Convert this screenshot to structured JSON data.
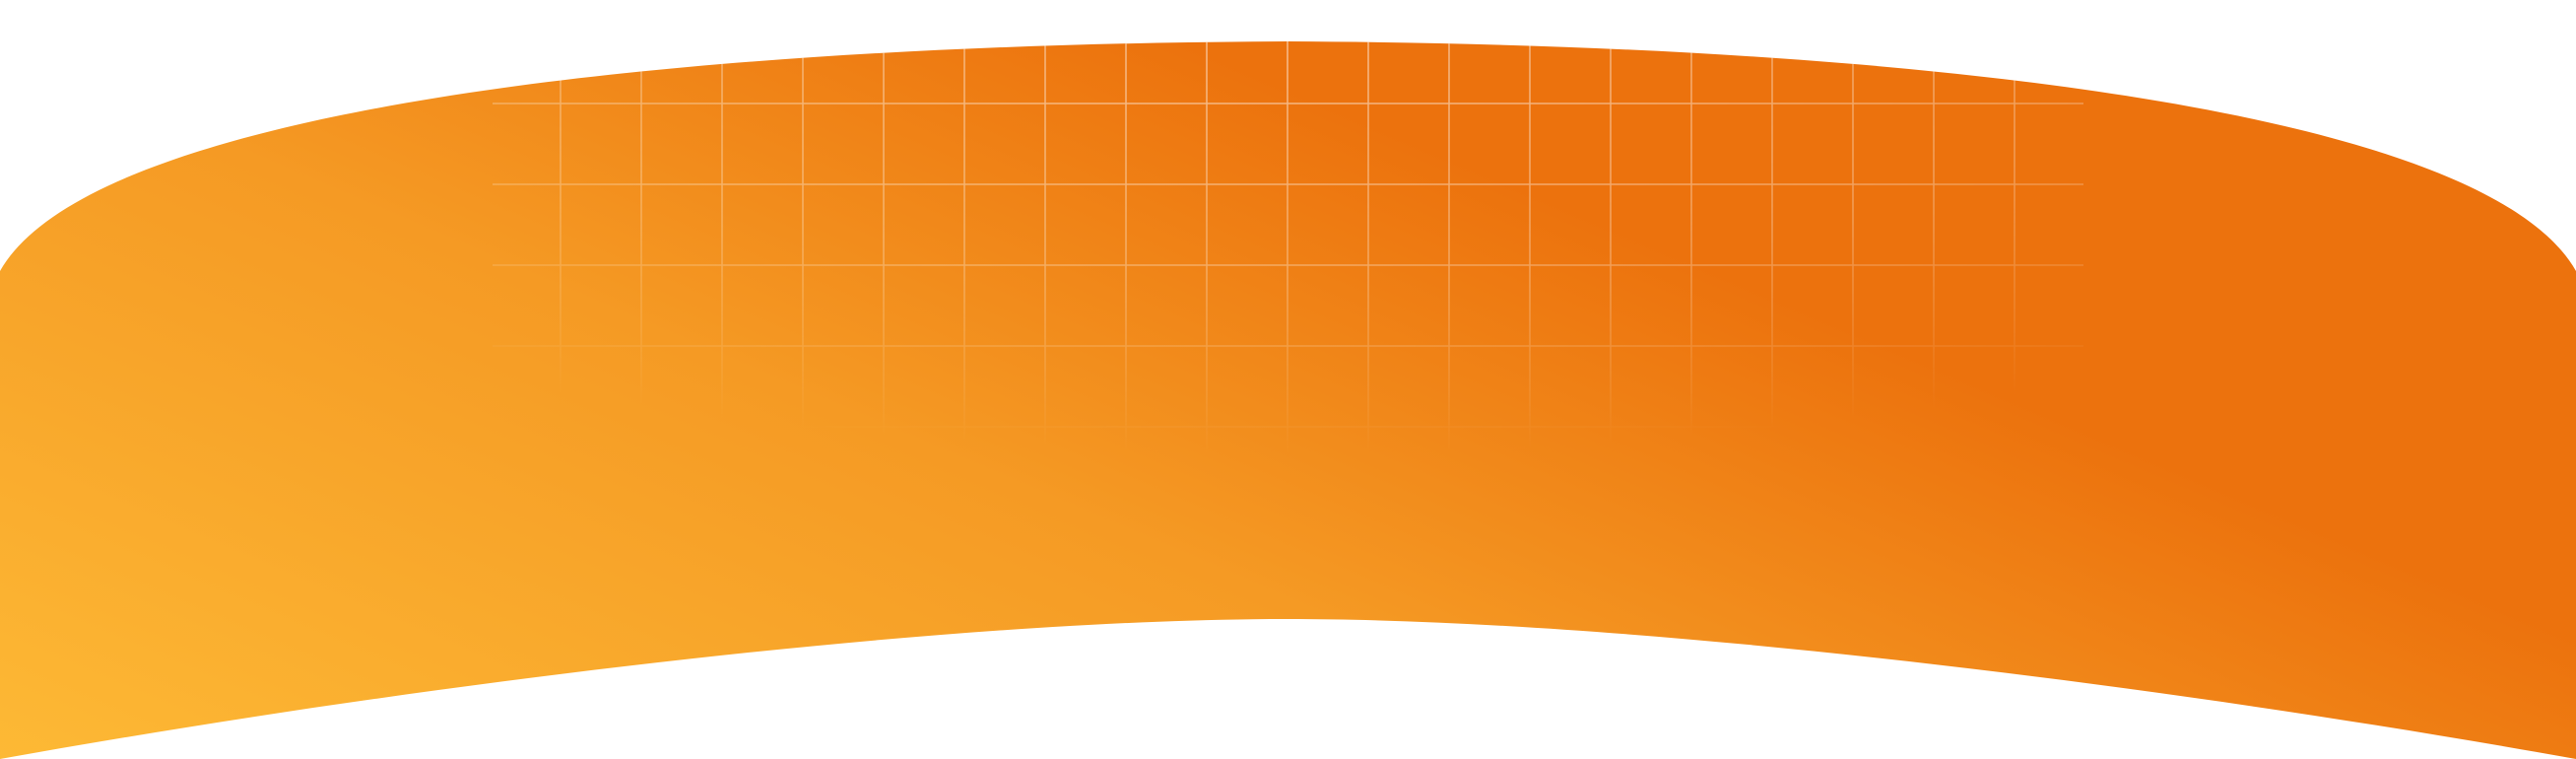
{
  "banner": {
    "gradient_start": "#FDB935",
    "gradient_mid": "#F59A24",
    "gradient_end": "#EC720D",
    "grid_line_color": "#FFFFFF",
    "background": "#FFFFFF"
  }
}
